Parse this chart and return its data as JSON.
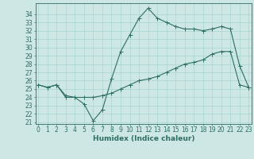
{
  "xlabel": "Humidex (Indice chaleur)",
  "background_color": "#cde8e4",
  "grid_color": "#a8d5ce",
  "line_color": "#2d6e65",
  "x_values": [
    0,
    1,
    2,
    3,
    4,
    5,
    6,
    7,
    8,
    9,
    10,
    11,
    12,
    13,
    14,
    15,
    16,
    17,
    18,
    19,
    20,
    21,
    22,
    23
  ],
  "line1_y": [
    25.5,
    25.2,
    25.5,
    24.2,
    24.0,
    23.2,
    21.2,
    22.5,
    26.2,
    29.5,
    31.5,
    33.5,
    34.7,
    33.5,
    33.0,
    32.5,
    32.2,
    32.2,
    32.0,
    32.2,
    32.5,
    32.2,
    27.8,
    25.2
  ],
  "line2_y": [
    25.5,
    25.2,
    25.5,
    24.0,
    24.0,
    24.0,
    24.0,
    24.2,
    24.5,
    25.0,
    25.5,
    26.0,
    26.2,
    26.5,
    27.0,
    27.5,
    28.0,
    28.2,
    28.5,
    29.2,
    29.5,
    29.5,
    25.5,
    25.2
  ],
  "ylim": [
    21,
    35
  ],
  "yticks": [
    21,
    22,
    23,
    24,
    25,
    26,
    27,
    28,
    29,
    30,
    31,
    32,
    33,
    34
  ],
  "xlim": [
    0,
    23
  ],
  "xticks": [
    0,
    1,
    2,
    3,
    4,
    5,
    6,
    7,
    8,
    9,
    10,
    11,
    12,
    13,
    14,
    15,
    16,
    17,
    18,
    19,
    20,
    21,
    22,
    23
  ],
  "tick_fontsize": 5.5,
  "xlabel_fontsize": 6.5,
  "marker_size": 1.8,
  "line_width": 0.8
}
